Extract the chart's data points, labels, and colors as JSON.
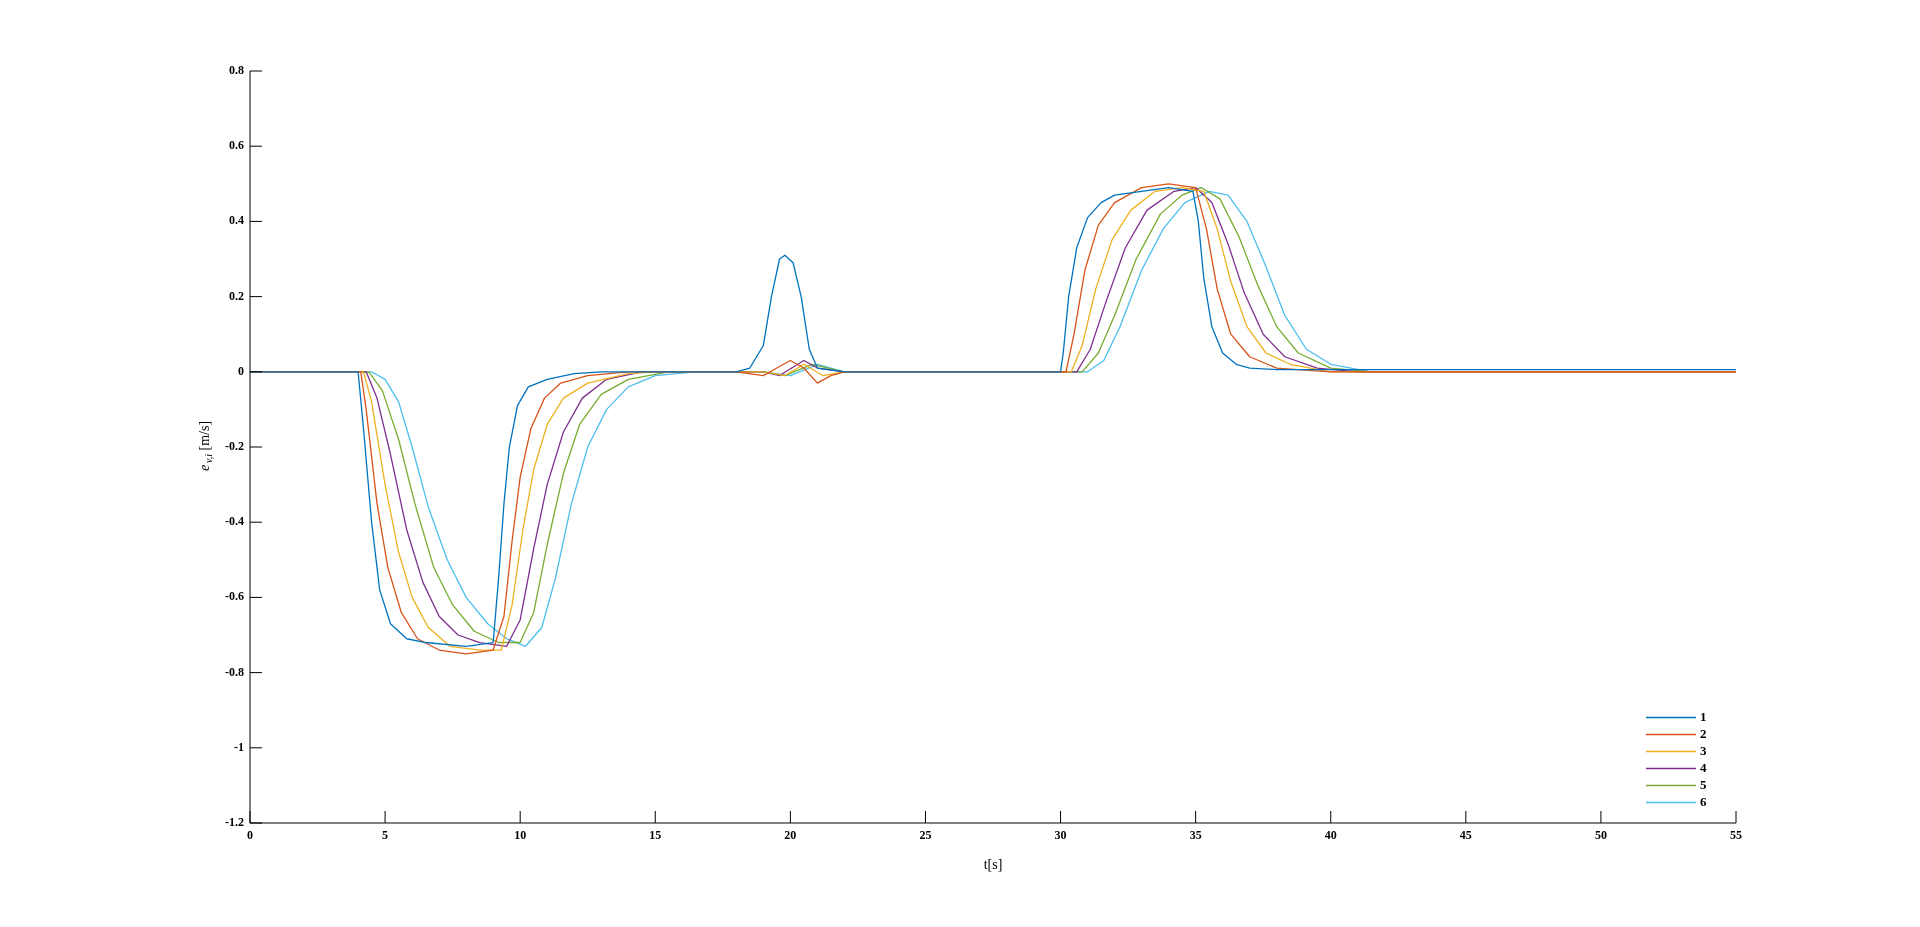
{
  "chart_data": {
    "type": "line",
    "xlabel": "t[s]",
    "ylabel": "e$_{v,i}$ [m/s]",
    "xlim": [
      0,
      55
    ],
    "xticks": [
      0,
      5,
      10,
      15,
      20,
      25,
      30,
      35,
      40,
      45,
      50,
      55
    ],
    "ylim": [
      -1.2,
      0.8
    ],
    "yticks": [
      -1.2,
      -1,
      -0.8,
      -0.6,
      -0.4,
      -0.2,
      0,
      0.2,
      0.4,
      0.6,
      0.8
    ],
    "grid": false,
    "legend": "bottom right",
    "marker": "none",
    "line_style": "solid",
    "series": [
      {
        "name": "1",
        "color": "#0072bd",
        "x": [
          0,
          4,
          4.2,
          4.5,
          4.8,
          5.2,
          5.8,
          6.5,
          8,
          9,
          9.2,
          9.4,
          9.6,
          9.9,
          10.3,
          11,
          12,
          13,
          18,
          18.5,
          19,
          19.3,
          19.6,
          19.8,
          20.1,
          20.4,
          20.7,
          21,
          22,
          30,
          30.1,
          30.3,
          30.6,
          31,
          31.5,
          32,
          33,
          34,
          34.9,
          35.1,
          35.3,
          35.6,
          36,
          36.5,
          37,
          38,
          40,
          55
        ],
        "values": [
          0,
          0,
          -0.15,
          -0.4,
          -0.58,
          -0.67,
          -0.71,
          -0.72,
          -0.73,
          -0.72,
          -0.55,
          -0.35,
          -0.2,
          -0.09,
          -0.04,
          -0.02,
          -0.005,
          0,
          0,
          0.01,
          0.07,
          0.2,
          0.3,
          0.31,
          0.29,
          0.2,
          0.06,
          0.01,
          0,
          0,
          0.05,
          0.2,
          0.33,
          0.41,
          0.45,
          0.47,
          0.48,
          0.49,
          0.48,
          0.4,
          0.25,
          0.12,
          0.05,
          0.02,
          0.01,
          0.006,
          0.006,
          0.006
        ]
      },
      {
        "name": "2",
        "color": "#d95319",
        "x": [
          0,
          4.1,
          4.3,
          4.7,
          5.1,
          5.6,
          6.2,
          7,
          8,
          9,
          9.4,
          9.7,
          10,
          10.4,
          10.9,
          11.5,
          12.5,
          14,
          18,
          19,
          19.5,
          20,
          20.5,
          21,
          21.5,
          22,
          30.2,
          30.5,
          30.9,
          31.4,
          32,
          33,
          34,
          35,
          35.4,
          35.8,
          36.3,
          37,
          38,
          40,
          55
        ],
        "values": [
          0,
          0,
          -0.1,
          -0.35,
          -0.52,
          -0.64,
          -0.71,
          -0.74,
          -0.75,
          -0.74,
          -0.65,
          -0.45,
          -0.28,
          -0.15,
          -0.07,
          -0.03,
          -0.01,
          0,
          0,
          -0.01,
          0.01,
          0.03,
          0.01,
          -0.03,
          -0.01,
          0,
          0,
          0.1,
          0.27,
          0.39,
          0.45,
          0.49,
          0.5,
          0.49,
          0.38,
          0.22,
          0.1,
          0.04,
          0.01,
          0,
          0
        ]
      },
      {
        "name": "3",
        "color": "#edb120",
        "x": [
          0,
          4.2,
          4.5,
          5,
          5.5,
          6,
          6.6,
          7.4,
          8.5,
          9.3,
          9.7,
          10.1,
          10.5,
          11,
          11.6,
          12.5,
          14,
          15,
          19,
          19.8,
          20.5,
          21.2,
          22,
          30.4,
          30.8,
          31.3,
          31.9,
          32.6,
          33.5,
          34.5,
          35.3,
          35.8,
          36.3,
          36.9,
          37.6,
          38.5,
          40,
          55
        ],
        "values": [
          0,
          0,
          -0.08,
          -0.3,
          -0.48,
          -0.6,
          -0.68,
          -0.73,
          -0.74,
          -0.74,
          -0.62,
          -0.42,
          -0.26,
          -0.14,
          -0.07,
          -0.03,
          -0.005,
          0,
          0,
          -0.01,
          0.02,
          -0.01,
          0,
          0,
          0.07,
          0.22,
          0.35,
          0.43,
          0.48,
          0.49,
          0.48,
          0.38,
          0.24,
          0.12,
          0.05,
          0.02,
          0,
          0
        ]
      },
      {
        "name": "4",
        "color": "#7e2f8e",
        "x": [
          0,
          4.3,
          4.7,
          5.2,
          5.8,
          6.4,
          7,
          7.7,
          8.5,
          9.5,
          10,
          10.5,
          11,
          11.6,
          12.3,
          13.2,
          14.5,
          19,
          19.6,
          20.5,
          21,
          22,
          30.6,
          31.1,
          31.7,
          32.4,
          33.2,
          34.2,
          35,
          35.6,
          36.2,
          36.8,
          37.5,
          38.3,
          39.5,
          41,
          55
        ],
        "values": [
          0,
          0,
          -0.07,
          -0.22,
          -0.42,
          -0.56,
          -0.65,
          -0.7,
          -0.72,
          -0.73,
          -0.66,
          -0.47,
          -0.3,
          -0.16,
          -0.07,
          -0.02,
          0,
          0,
          -0.01,
          0.03,
          0.01,
          0,
          0,
          0.06,
          0.19,
          0.33,
          0.43,
          0.48,
          0.49,
          0.45,
          0.34,
          0.21,
          0.1,
          0.04,
          0.01,
          0,
          0
        ]
      },
      {
        "name": "5",
        "color": "#77ac30",
        "x": [
          0,
          4.4,
          4.9,
          5.5,
          6.1,
          6.8,
          7.5,
          8.3,
          9.2,
          10,
          10.5,
          11,
          11.6,
          12.2,
          13,
          14,
          15.5,
          19,
          19.8,
          20.8,
          22,
          30.8,
          31.4,
          32,
          32.8,
          33.7,
          34.5,
          35.2,
          35.9,
          36.6,
          37.3,
          38,
          38.8,
          40,
          41.5,
          55
        ],
        "values": [
          0,
          0,
          -0.05,
          -0.18,
          -0.35,
          -0.52,
          -0.62,
          -0.69,
          -0.72,
          -0.72,
          -0.64,
          -0.46,
          -0.27,
          -0.14,
          -0.06,
          -0.02,
          0,
          0,
          -0.01,
          0.02,
          0,
          0,
          0.05,
          0.15,
          0.3,
          0.42,
          0.47,
          0.49,
          0.46,
          0.36,
          0.23,
          0.12,
          0.05,
          0.01,
          0,
          0
        ]
      },
      {
        "name": "6",
        "color": "#4dbeee",
        "x": [
          0,
          4.5,
          5,
          5.5,
          6,
          6.6,
          7.3,
          8,
          8.8,
          9.5,
          10.2,
          10.8,
          11.3,
          11.9,
          12.5,
          13.2,
          14,
          15,
          16.5,
          19,
          20,
          21,
          22,
          31,
          31.6,
          32.2,
          33,
          33.8,
          34.6,
          35.5,
          36.2,
          36.9,
          37.6,
          38.3,
          39.1,
          40,
          41.5,
          55
        ],
        "values": [
          0,
          0,
          -0.02,
          -0.08,
          -0.2,
          -0.36,
          -0.5,
          -0.6,
          -0.67,
          -0.71,
          -0.73,
          -0.68,
          -0.55,
          -0.35,
          -0.2,
          -0.1,
          -0.04,
          -0.01,
          0,
          0,
          -0.01,
          0.02,
          0,
          0,
          0.03,
          0.12,
          0.27,
          0.38,
          0.45,
          0.48,
          0.47,
          0.4,
          0.28,
          0.15,
          0.06,
          0.02,
          0,
          0
        ]
      }
    ]
  }
}
